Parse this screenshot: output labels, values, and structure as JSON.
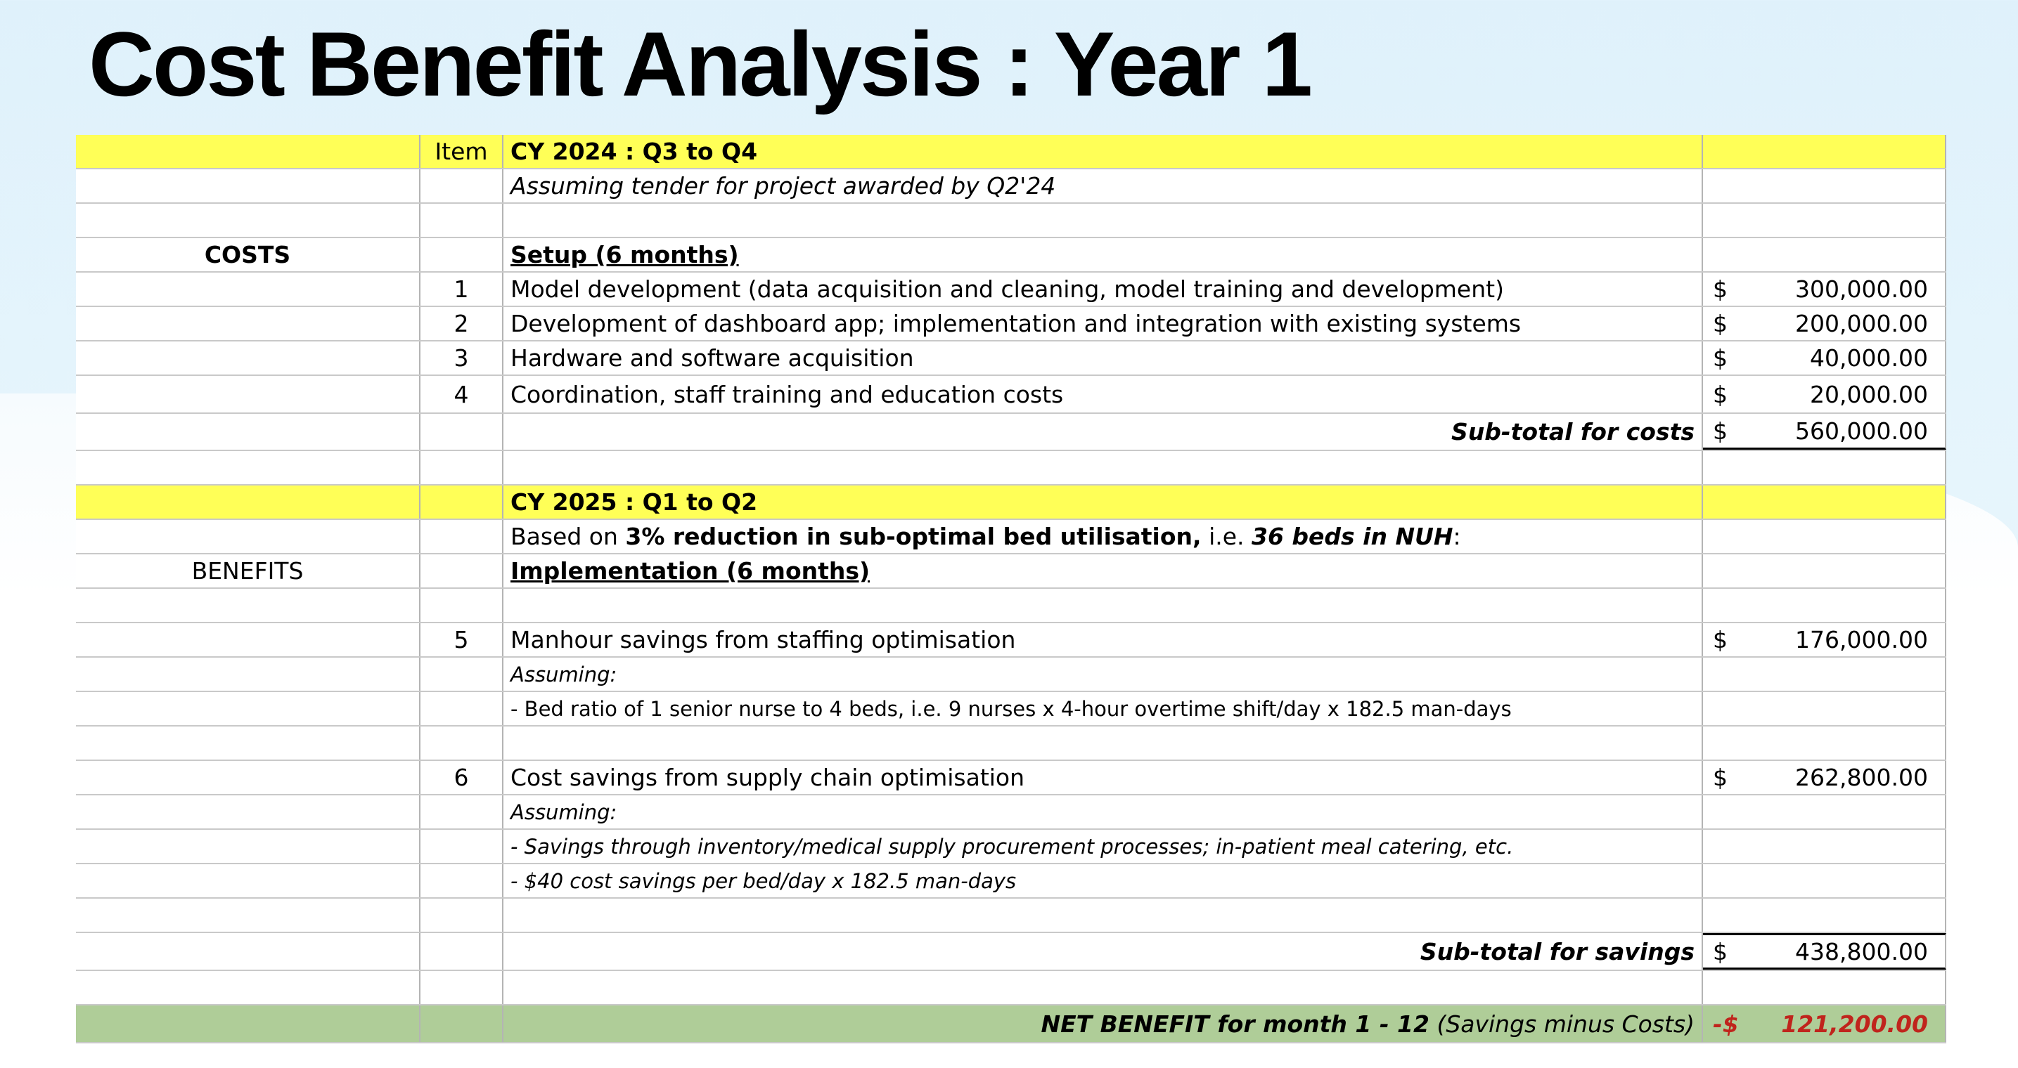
{
  "title": "Cost Benefit Analysis : Year 1",
  "sheet": {
    "item_header": "Item",
    "cy2024": "CY 2024 : Q3 to Q4",
    "assumption_2024": "Assuming tender for project awarded by Q2'24",
    "costs_label": "COSTS",
    "setup_label": "Setup (6 months)",
    "cost_items": [
      {
        "no": "1",
        "desc": "Model development (data acquisition and cleaning, model training and development)",
        "cur": "$",
        "amount": "300,000.00"
      },
      {
        "no": "2",
        "desc": "Development of dashboard app; implementation and integration with existing systems",
        "cur": "$",
        "amount": "200,000.00"
      },
      {
        "no": "3",
        "desc": "Hardware and software acquisition",
        "cur": "$",
        "amount": "40,000.00"
      },
      {
        "no": "4",
        "desc": "Coordination, staff training and education costs",
        "cur": "$",
        "amount": "20,000.00"
      }
    ],
    "subtotal_costs_label": "Sub-total for costs",
    "subtotal_costs_cur": "$",
    "subtotal_costs": "560,000.00",
    "cy2025": "CY 2025 : Q1 to Q2",
    "based_on_pre": "Based on ",
    "based_on_bold": "3% reduction in sub-optimal bed utilisation,",
    "based_on_mid": " i.e. ",
    "based_on_beds": "36 beds in NUH",
    "based_on_post": ":",
    "benefits_label": "BENEFITS",
    "implementation_label": "Implementation (6 months)",
    "item5": {
      "no": "5",
      "desc": "Manhour savings from staffing optimisation",
      "cur": "$",
      "amount": "176,000.00"
    },
    "assuming5": "Assuming:",
    "assumption5": "- Bed ratio of 1 senior nurse to 4 beds, i.e. 9 nurses x 4-hour overtime shift/day x 182.5 man-days",
    "item6": {
      "no": "6",
      "desc": "Cost savings from supply chain optimisation",
      "cur": "$",
      "amount": "262,800.00"
    },
    "assuming6": "Assuming:",
    "assumption6a": "- Savings through inventory/medical supply procurement processes; in-patient meal catering, etc.",
    "assumption6b": "- $40 cost savings per bed/day x 182.5 man-days",
    "subtotal_savings_label": "Sub-total for savings",
    "subtotal_savings_cur": "$",
    "subtotal_savings": "438,800.00",
    "net_label_bold": "NET BENEFIT for month 1 - 12",
    "net_label_rest": " (Savings minus Costs)",
    "net_cur": "-$",
    "net_amount": "121,200.00"
  },
  "colors": {
    "header_yellow": "#ffff57",
    "net_green": "#afcd98",
    "negative_red": "#c0241c"
  }
}
